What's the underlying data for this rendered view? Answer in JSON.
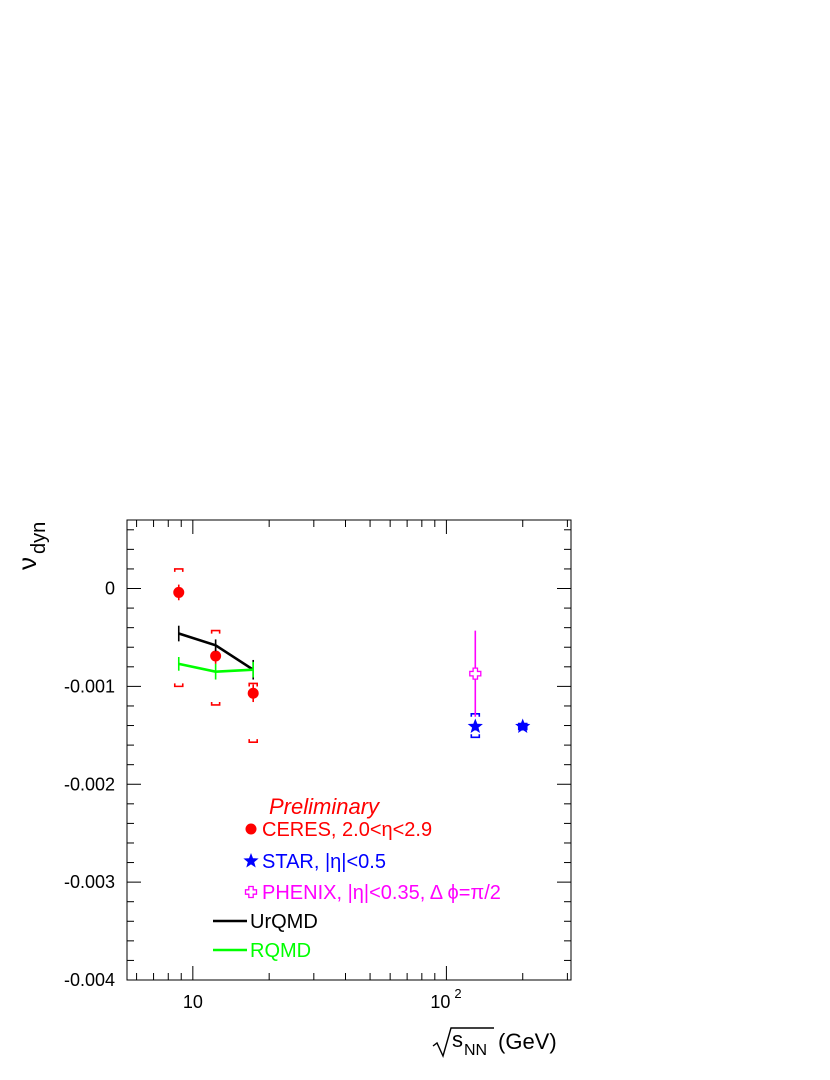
{
  "chart_data": {
    "type": "scatter",
    "x_scale": "log",
    "xlim": [
      5.5,
      310
    ],
    "ylim": [
      -0.004,
      0.0007
    ],
    "grid": false,
    "ylabel": {
      "main": "ν",
      "sub": "dyn"
    },
    "xlabel": {
      "radical": "s",
      "sub": "NN",
      "unit": "(GeV)"
    },
    "y_ticks": [
      {
        "value": 0,
        "label": "0"
      },
      {
        "value": -0.001,
        "label": "-0.001"
      },
      {
        "value": -0.002,
        "label": "-0.002"
      },
      {
        "value": -0.003,
        "label": "-0.003"
      },
      {
        "value": -0.004,
        "label": "-0.004"
      }
    ],
    "x_ticks": [
      {
        "value": 10,
        "label": "10"
      },
      {
        "value": 100,
        "label": "10",
        "exponent": "2"
      }
    ],
    "annotation": {
      "text": "Preliminary",
      "color": "#ff0000"
    },
    "legend": [
      {
        "id": "ceres",
        "label": "CERES, 2.0<η<2.9",
        "marker": "circle",
        "color": "#ff0000"
      },
      {
        "id": "star",
        "label": "STAR, |η|<0.5",
        "marker": "star",
        "color": "#0000ff"
      },
      {
        "id": "phenix",
        "label": "PHENIX, |η|<0.35, Δ ϕ=π/2",
        "marker": "open-cross",
        "color": "#ff00ff"
      },
      {
        "id": "urqmd",
        "label": "UrQMD",
        "marker": "line",
        "color": "#000000"
      },
      {
        "id": "rqmd",
        "label": "RQMD",
        "marker": "line",
        "color": "#00ff00"
      }
    ],
    "series": [
      {
        "id": "ceres",
        "color": "#ff0000",
        "marker": "circle",
        "points": [
          {
            "x": 8.8,
            "y": -4e-05,
            "stat": 8e-05,
            "sys_up": 0.00024,
            "sys_down": 0.00096
          },
          {
            "x": 12.3,
            "y": -0.00069,
            "stat": 8e-05,
            "sys_up": 0.00026,
            "sys_down": 0.0005
          },
          {
            "x": 17.3,
            "y": -0.00107,
            "stat": 9e-05,
            "sys_up": 0.0001,
            "sys_down": 0.0005
          }
        ]
      },
      {
        "id": "star",
        "color": "#0000ff",
        "marker": "star",
        "points": [
          {
            "x": 130,
            "y": -0.00141,
            "stat": 4e-05,
            "sys_up": 0.00013,
            "sys_down": 0.00011
          },
          {
            "x": 200,
            "y": -0.00141,
            "stat": 4e-05,
            "sys_up": 3e-05,
            "sys_down": 3e-05
          }
        ]
      },
      {
        "id": "phenix",
        "color": "#ff00ff",
        "marker": "open-cross",
        "points": [
          {
            "x": 130,
            "y": -0.00087,
            "stat": 0.00044,
            "sys_up": 0,
            "sys_down": 0
          }
        ]
      },
      {
        "id": "urqmd",
        "color": "#000000",
        "marker": "line",
        "points": [
          {
            "x": 8.8,
            "y": -0.00046,
            "err": 8e-05
          },
          {
            "x": 12.3,
            "y": -0.00058,
            "err": 6e-05
          },
          {
            "x": 17.3,
            "y": -0.00083,
            "err": 0.0001
          }
        ]
      },
      {
        "id": "rqmd",
        "color": "#00ff00",
        "marker": "line",
        "points": [
          {
            "x": 8.8,
            "y": -0.00077,
            "err": 7e-05
          },
          {
            "x": 12.3,
            "y": -0.00085,
            "err": 8e-05
          },
          {
            "x": 17.3,
            "y": -0.00083,
            "err": 8e-05
          }
        ]
      }
    ]
  }
}
